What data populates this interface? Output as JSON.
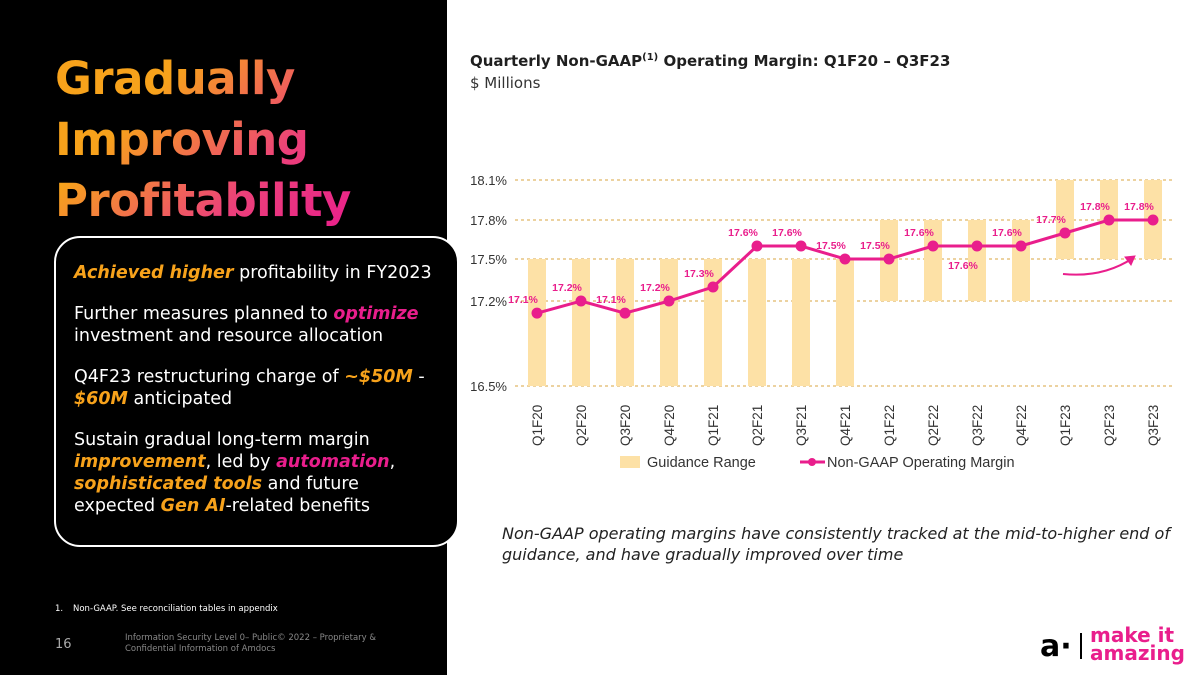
{
  "left_panel": {
    "title_lines": [
      "Gradually",
      "Improving",
      "Profitability"
    ],
    "bullets": {
      "b1_hl": "Achieved higher",
      "b1_rest": " profitability in FY2023",
      "b2_a": "Further measures planned to ",
      "b2_hl": "optimize",
      "b2_b": " investment and resource allocation",
      "b3_a": "Q4F23 restructuring charge of ",
      "b3_hl1": "~$50M",
      "b3_b": " - ",
      "b3_hl2": "$60M",
      "b3_c": " anticipated",
      "b4_a": "Sustain gradual long-term margin ",
      "b4_hl1": "improvement",
      "b4_b": ", led by ",
      "b4_hl2": "automation",
      "b4_c": ", ",
      "b4_hl3": "sophisticated tools",
      "b4_d": " and future expected ",
      "b4_hl4": "Gen AI",
      "b4_e": "-related benefits"
    },
    "footnote_num": "1.",
    "footnote": "Non-GAAP. See reconciliation tables in appendix",
    "page_number": "16",
    "security_notice": "Information Security Level 0– Public© 2022 – Proprietary & Confidential Information of Amdocs"
  },
  "chart_header": {
    "title_a": "Quarterly Non-GAAP",
    "title_sup": "(1)",
    "title_b": " Operating Margin: Q1F20 – Q3F23",
    "subtitle": "$ Millions"
  },
  "chart_data": {
    "type": "line",
    "title": "Quarterly Non-GAAP(1) Operating Margin: Q1F20 – Q3F23",
    "ylabel": "$ Millions",
    "categories": [
      "Q1F20",
      "Q2F20",
      "Q3F20",
      "Q4F20",
      "Q1F21",
      "Q2F21",
      "Q3F21",
      "Q4F21",
      "Q1F22",
      "Q2F22",
      "Q3F22",
      "Q4F22",
      "Q1F23",
      "Q2F23",
      "Q3F23"
    ],
    "series": [
      {
        "name": "Non-GAAP Operating Margin",
        "type": "line",
        "values": [
          17.1,
          17.2,
          17.1,
          17.2,
          17.3,
          17.6,
          17.6,
          17.5,
          17.5,
          17.6,
          17.6,
          17.6,
          17.7,
          17.8,
          17.8
        ],
        "labels": [
          "17.1%",
          "17.2%",
          "17.1%",
          "17.2%",
          "17.3%",
          "17.6%",
          "17.6%",
          "17.5%",
          "17.5%",
          "17.6%",
          "17.6%",
          "17.6%",
          "17.7%",
          "17.8%",
          "17.8%"
        ],
        "color": "#e91e8c"
      },
      {
        "name": "Guidance Range",
        "type": "floating-bar",
        "low": [
          16.5,
          16.5,
          16.5,
          16.5,
          16.5,
          16.5,
          16.5,
          16.5,
          17.2,
          17.2,
          17.2,
          17.2,
          17.5,
          17.5,
          17.5
        ],
        "high": [
          17.5,
          17.5,
          17.5,
          17.5,
          17.5,
          17.5,
          17.5,
          17.5,
          17.8,
          17.8,
          17.8,
          17.8,
          18.1,
          18.1,
          18.1
        ],
        "color": "#fde1a6"
      }
    ],
    "y_ticks": [
      "16.5%",
      "17.2%",
      "17.5%",
      "17.8%",
      "18.1%"
    ],
    "y_tick_values": [
      16.5,
      17.2,
      17.5,
      17.8,
      18.1
    ],
    "ylim": [
      16.5,
      18.1
    ],
    "grid": true,
    "legend_position": "bottom",
    "legend": [
      "Guidance Range",
      "Non-GAAP Operating Margin"
    ]
  },
  "caption": "Non-GAAP operating margins have consistently tracked at the mid-to-higher end of guidance, and have gradually improved over time",
  "logo": {
    "mark": "a·",
    "line1": "make it",
    "line2": "amazing"
  },
  "colors": {
    "accent_pink": "#e91e8c",
    "accent_orange": "#f7a21b",
    "guidance_fill": "#fde1a6"
  }
}
